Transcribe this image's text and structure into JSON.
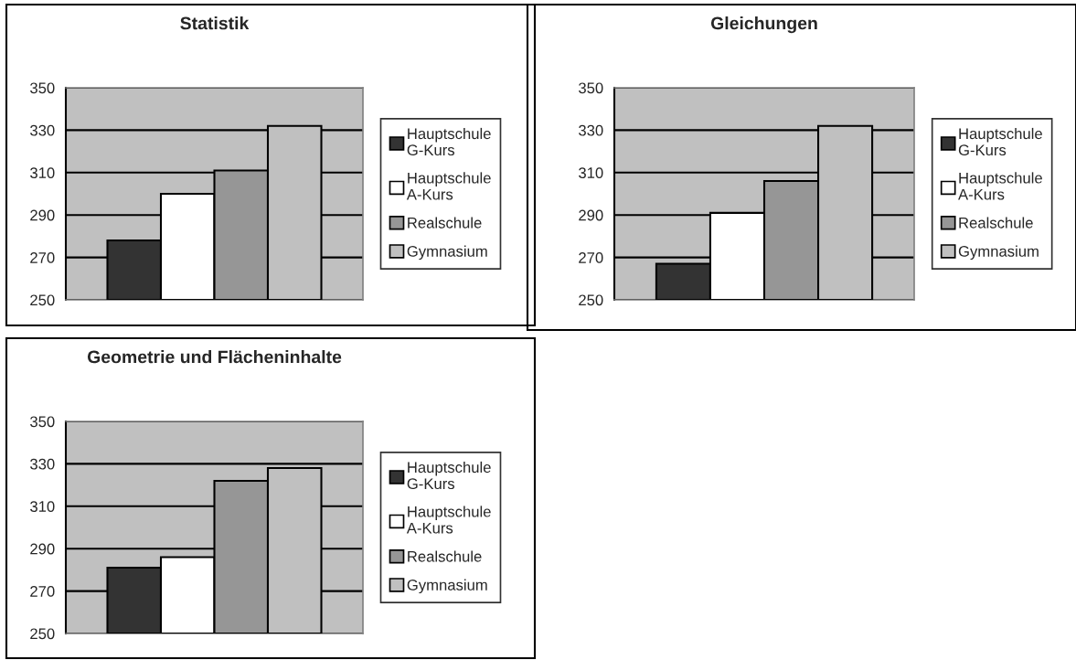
{
  "chart_data": [
    {
      "type": "bar",
      "title": "Statistik",
      "categories": [
        null
      ],
      "ylim": [
        250,
        350
      ],
      "yticks": [
        250,
        270,
        290,
        310,
        330,
        350
      ],
      "grid": "y",
      "legend": "right",
      "series": [
        {
          "name": "Hauptschule\nG-Kurs",
          "color": "#333333",
          "values": [
            278
          ]
        },
        {
          "name": "Hauptschule\nA-Kurs",
          "color": "#ffffff",
          "values": [
            300
          ]
        },
        {
          "name": "Realschule",
          "color": "#969696",
          "values": [
            311
          ]
        },
        {
          "name": "Gymnasium",
          "color": "#c0c0c0",
          "values": [
            332
          ]
        }
      ]
    },
    {
      "type": "bar",
      "title": "Gleichungen",
      "categories": [
        null
      ],
      "ylim": [
        250,
        350
      ],
      "yticks": [
        250,
        270,
        290,
        310,
        330,
        350
      ],
      "grid": "y",
      "legend": "right",
      "series": [
        {
          "name": "Hauptschule\nG-Kurs",
          "color": "#333333",
          "values": [
            267
          ]
        },
        {
          "name": "Hauptschule\nA-Kurs",
          "color": "#ffffff",
          "values": [
            291
          ]
        },
        {
          "name": "Realschule",
          "color": "#969696",
          "values": [
            306
          ]
        },
        {
          "name": "Gymnasium",
          "color": "#c0c0c0",
          "values": [
            332
          ]
        }
      ]
    },
    {
      "type": "bar",
      "title": "Geometrie und Flächeninhalte",
      "categories": [
        null
      ],
      "ylim": [
        250,
        350
      ],
      "yticks": [
        250,
        270,
        290,
        310,
        330,
        350
      ],
      "grid": "y",
      "legend": "right",
      "series": [
        {
          "name": "Hauptschule\nG-Kurs",
          "color": "#333333",
          "values": [
            281
          ]
        },
        {
          "name": "Hauptschule\nA-Kurs",
          "color": "#ffffff",
          "values": [
            286
          ]
        },
        {
          "name": "Realschule",
          "color": "#969696",
          "values": [
            322
          ]
        },
        {
          "name": "Gymnasium",
          "color": "#c0c0c0",
          "values": [
            328
          ]
        }
      ]
    }
  ]
}
